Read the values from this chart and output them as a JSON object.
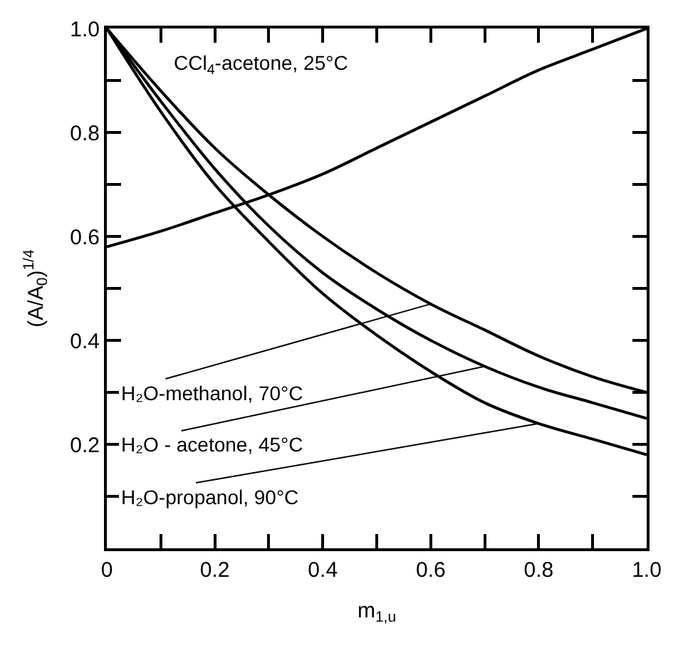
{
  "chart_data": {
    "type": "line",
    "xlabel": "m$_{1,u}$",
    "ylabel": "(A/A$_{0}$)$^{1/4}$",
    "x": [
      0,
      0.1,
      0.2,
      0.3,
      0.4,
      0.5,
      0.6,
      0.7,
      0.8,
      0.9,
      1.0
    ],
    "series": [
      {
        "color": "#000000",
        "values": [
          0.58,
          0.61,
          0.645,
          0.68,
          0.72,
          0.77,
          0.82,
          0.87,
          0.92,
          0.96,
          1.0
        ]
      },
      {
        "color": "#000000",
        "values": [
          1.0,
          0.88,
          0.77,
          0.68,
          0.6,
          0.53,
          0.47,
          0.42,
          0.37,
          0.33,
          0.3
        ]
      },
      {
        "color": "#000000",
        "values": [
          1.0,
          0.86,
          0.73,
          0.62,
          0.53,
          0.46,
          0.4,
          0.35,
          0.31,
          0.28,
          0.25
        ]
      },
      {
        "color": "#000000",
        "values": [
          1.0,
          0.84,
          0.7,
          0.59,
          0.49,
          0.41,
          0.34,
          0.28,
          0.24,
          0.21,
          0.18
        ]
      }
    ],
    "annotations": [
      "CCl$_{4}$-acetone, 25°C",
      {
        "text": "H₂O-methanol, 70°C",
        "x": 0.6,
        "y": 0.47
      },
      {
        "text": "H₂O - acetone, 45°C",
        "x": 0.7,
        "y": 0.35
      },
      {
        "text": "H₂O-propanol, 90°C",
        "x": 0.8,
        "y": 0.24
      }
    ],
    "xlim": [
      0,
      1.0
    ],
    "ylim": [
      0,
      1.0
    ],
    "xticks": [
      0,
      {
        "value": 0.1,
        "label": null
      },
      0.2,
      {
        "value": 0.3,
        "label": null
      },
      0.4,
      {
        "value": 0.5,
        "label": null
      },
      0.6,
      {
        "value": 0.7,
        "label": null
      },
      0.8,
      {
        "value": 0.9,
        "label": null
      },
      {
        "value": 1.0,
        "label": "1.0"
      }
    ],
    "yticks": [
      {
        "value": 0,
        "label": null
      },
      {
        "value": 0.1,
        "label": null
      },
      0.2,
      {
        "value": 0.3,
        "label": null
      },
      0.4,
      {
        "value": 0.5,
        "label": null
      },
      0.6,
      {
        "value": 0.7,
        "label": null
      },
      0.8,
      {
        "value": 0.9,
        "label": null
      },
      {
        "value": 1.0,
        "label": "1.0"
      }
    ],
    "grid": false,
    "legend": false,
    "marker": "none",
    "line_style": "solid"
  }
}
